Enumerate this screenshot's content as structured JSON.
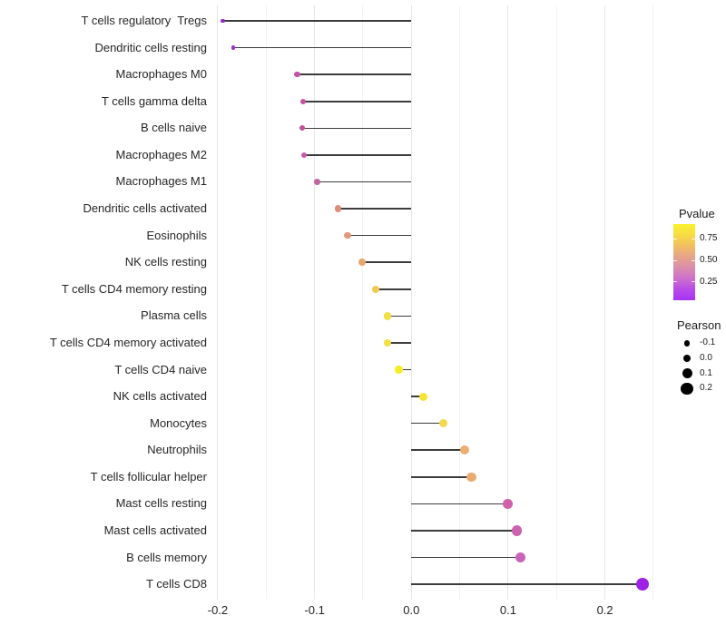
{
  "chart_data": {
    "type": "scatter",
    "variant": "lollipop",
    "orientation": "horizontal",
    "title": "",
    "xlabel": "",
    "ylabel": "",
    "xlim": [
      -0.213,
      0.266
    ],
    "stem_origin": 0.0,
    "grid": "on",
    "xticks": {
      "values": [
        -0.2,
        -0.1,
        0.0,
        0.1,
        0.2
      ],
      "labels": [
        "-0.2",
        "-0.1",
        "0.0",
        "0.1",
        "0.2"
      ]
    },
    "gridlines": {
      "major": [
        -0.2,
        -0.1,
        0.0,
        0.1,
        0.2
      ],
      "minor": [
        -0.15,
        -0.05,
        0.05,
        0.15,
        0.25
      ]
    },
    "color_encodes": "Pvalue",
    "size_encodes": "Pearson",
    "points": [
      {
        "label": "T cells regulatory  Tregs",
        "pearson": -0.195,
        "pvalue_est": 0.09,
        "color": "#8F2CC8"
      },
      {
        "label": "Dendritic cells resting",
        "pearson": -0.184,
        "pvalue_est": 0.1,
        "color": "#9930D2"
      },
      {
        "label": "Macrophages M0",
        "pearson": -0.118,
        "pvalue_est": 0.3,
        "color": "#C552A6"
      },
      {
        "label": "T cells gamma delta",
        "pearson": -0.112,
        "pvalue_est": 0.3,
        "color": "#C3539F"
      },
      {
        "label": "B cells naive",
        "pearson": -0.113,
        "pvalue_est": 0.31,
        "color": "#C0509C"
      },
      {
        "label": "Macrophages M2",
        "pearson": -0.111,
        "pvalue_est": 0.28,
        "color": "#C75AAB"
      },
      {
        "label": "Macrophages M1",
        "pearson": -0.097,
        "pvalue_est": 0.32,
        "color": "#C2669D"
      },
      {
        "label": "Dendritic cells activated",
        "pearson": -0.076,
        "pvalue_est": 0.48,
        "color": "#E08B79"
      },
      {
        "label": "Eosinophils",
        "pearson": -0.066,
        "pvalue_est": 0.5,
        "color": "#E29878"
      },
      {
        "label": "NK cells resting",
        "pearson": -0.051,
        "pvalue_est": 0.55,
        "color": "#E7A76F"
      },
      {
        "label": "T cells CD4 memory resting",
        "pearson": -0.037,
        "pvalue_est": 0.65,
        "color": "#EFCB4E"
      },
      {
        "label": "Plasma cells",
        "pearson": -0.025,
        "pvalue_est": 0.73,
        "color": "#F2DF45"
      },
      {
        "label": "T cells CD4 memory activated",
        "pearson": -0.025,
        "pvalue_est": 0.74,
        "color": "#F2DF40"
      },
      {
        "label": "T cells CD4 naive",
        "pearson": -0.013,
        "pvalue_est": 0.82,
        "color": "#F8EC27"
      },
      {
        "label": "NK cells activated",
        "pearson": 0.012,
        "pvalue_est": 0.8,
        "color": "#F4E434"
      },
      {
        "label": "Monocytes",
        "pearson": 0.033,
        "pvalue_est": 0.7,
        "color": "#F4D74C"
      },
      {
        "label": "Neutrophils",
        "pearson": 0.055,
        "pvalue_est": 0.56,
        "color": "#EDAE72"
      },
      {
        "label": "T cells follicular helper",
        "pearson": 0.062,
        "pvalue_est": 0.55,
        "color": "#EAAB71"
      },
      {
        "label": "Mast cells resting",
        "pearson": 0.1,
        "pvalue_est": 0.27,
        "color": "#D061A8"
      },
      {
        "label": "Mast cells activated",
        "pearson": 0.109,
        "pvalue_est": 0.26,
        "color": "#CC63AF"
      },
      {
        "label": "B cells memory",
        "pearson": 0.113,
        "pvalue_est": 0.24,
        "color": "#C964BB"
      },
      {
        "label": "T cells CD8",
        "pearson": 0.239,
        "pvalue_est": 0.03,
        "color": "#9C22E6"
      }
    ]
  },
  "legend": {
    "pvalue": {
      "title": "Pvalue",
      "bar_range": [
        0.92,
        0.04
      ],
      "tick_labels": [
        "0.75",
        "0.50",
        "0.25"
      ],
      "tick_values": [
        0.75,
        0.5,
        0.25
      ],
      "gradient_top_to_bottom": [
        "#FAF32C",
        "#F7DC45",
        "#F1BE62",
        "#E7A489",
        "#DB8DAB",
        "#CD70CC",
        "#B74BE8",
        "#A732F5"
      ]
    },
    "pearson": {
      "title": "Pearson",
      "dot_color": "#000000",
      "items": [
        {
          "label": "-0.1",
          "value": -0.1
        },
        {
          "label": "0.0",
          "value": 0.0
        },
        {
          "label": "0.1",
          "value": 0.1
        },
        {
          "label": "0.2",
          "value": 0.2
        }
      ]
    }
  }
}
